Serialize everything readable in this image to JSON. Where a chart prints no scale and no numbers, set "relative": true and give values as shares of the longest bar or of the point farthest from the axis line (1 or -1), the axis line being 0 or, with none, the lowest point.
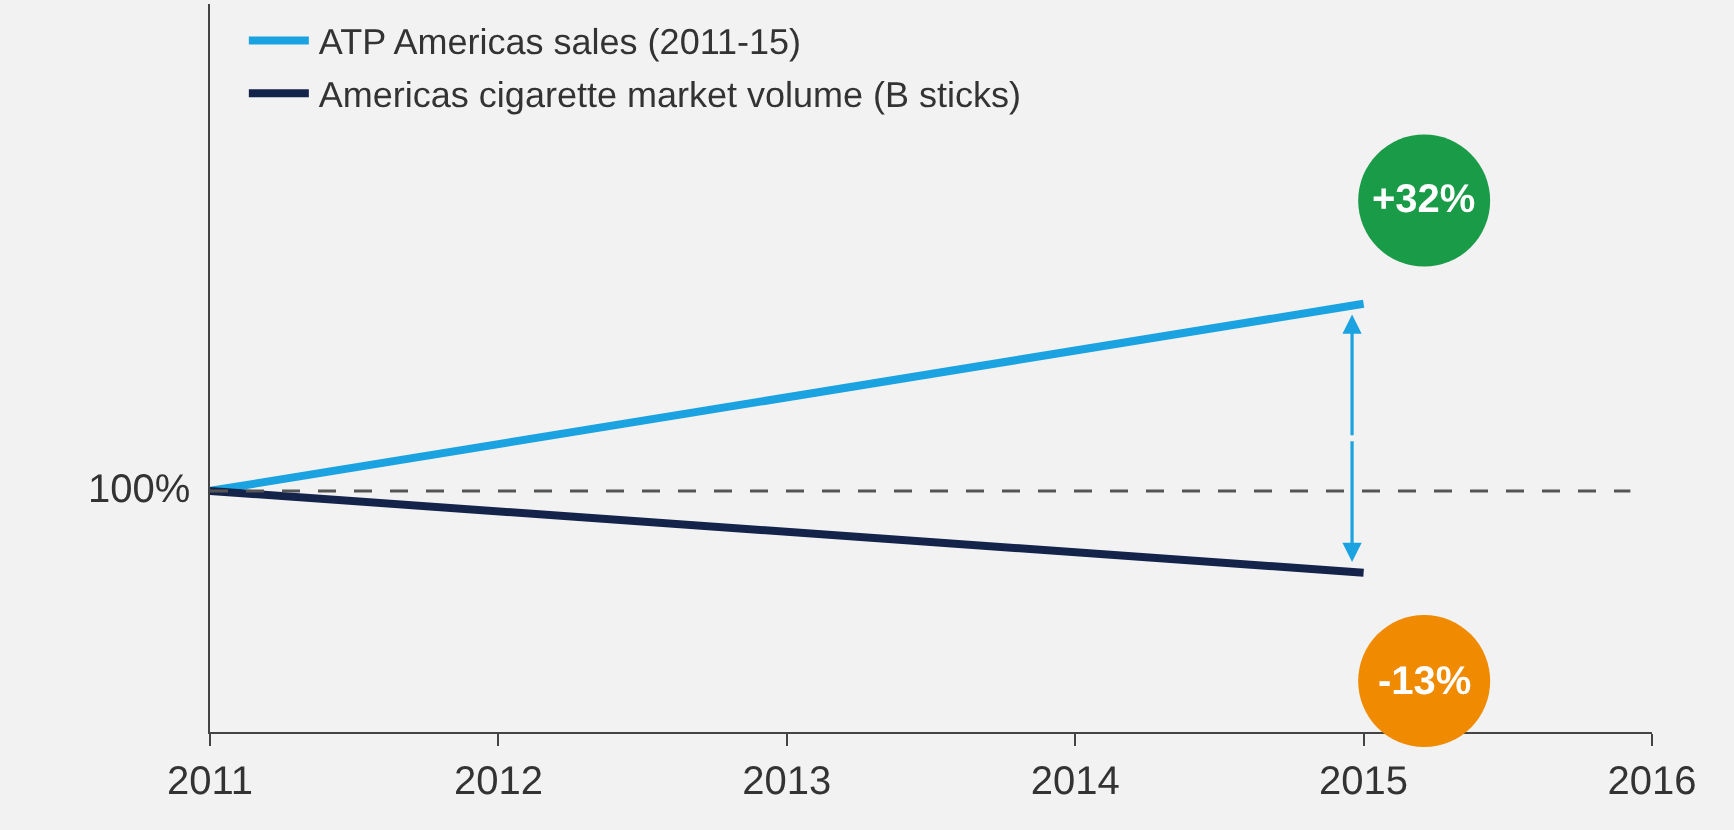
{
  "chart_data": {
    "type": "line",
    "x": [
      2011,
      2015
    ],
    "relative": true,
    "series": [
      {
        "name": "ATP Americas sales (2011-15)",
        "color": "#1aa3e0",
        "values": [
          0.563,
          1
        ]
      },
      {
        "name": "Americas cigarette market volume (B sticks)",
        "color": "#14234a",
        "values": [
          0.563,
          0.372
        ]
      }
    ],
    "xlim": [
      2011,
      2016
    ],
    "xticks": [
      2011,
      2012,
      2013,
      2014,
      2015,
      2016
    ],
    "ref_lines": [
      {
        "axis": "y",
        "value": 0.563,
        "color": "#555555",
        "line_style": "dashed"
      }
    ],
    "annotations": [
      {
        "text": "100%",
        "x": 2011,
        "y": 0.563
      },
      "+32%",
      "-13%"
    ],
    "legend": "top left",
    "grid": false,
    "marker": "none",
    "line_style": "solid"
  }
}
